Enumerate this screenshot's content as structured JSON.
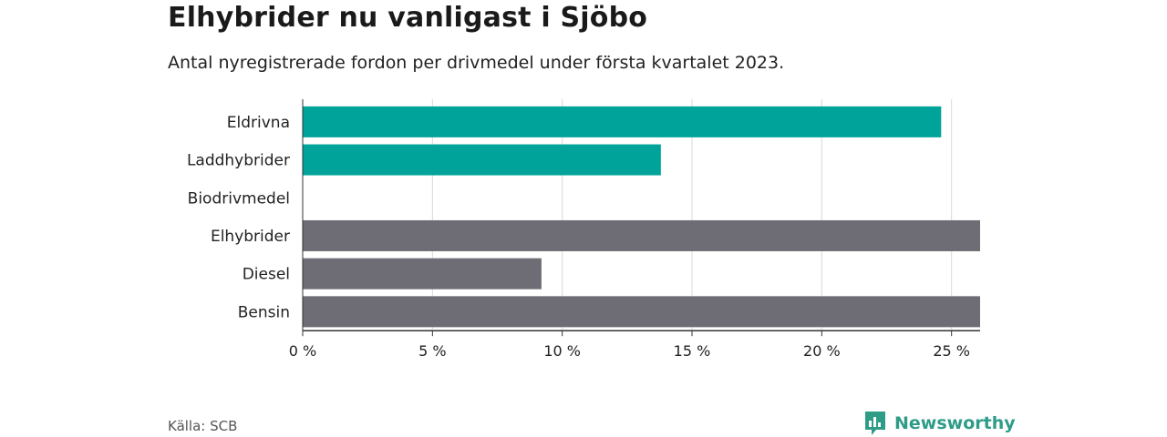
{
  "title": "Elhybrider nu vanligast i Sjöbo",
  "subtitle": "Antal nyregistrerade fordon per drivmedel under första kvartalet 2023.",
  "source": "Källa: SCB",
  "brand": {
    "name": "Newsworthy",
    "icon": "newsworthy-logo-icon"
  },
  "colors": {
    "highlight": "#00a39a",
    "default": "#6e6c74",
    "brand": "#2f9c88"
  },
  "chart_data": {
    "type": "bar",
    "orientation": "horizontal",
    "categories": [
      "Eldrivna",
      "Laddhybrider",
      "Biodrivmedel",
      "Elhybrider",
      "Diesel",
      "Bensin"
    ],
    "values": [
      24.6,
      13.8,
      0,
      26.1,
      9.2,
      26.1
    ],
    "highlighted": [
      true,
      true,
      false,
      false,
      false,
      false
    ],
    "xlim": [
      0,
      26.1
    ],
    "xticks": [
      0,
      5,
      10,
      15,
      20,
      25
    ],
    "xtick_labels": [
      "0 %",
      "5 %",
      "10 %",
      "15 %",
      "20 %",
      "25 %"
    ],
    "grid": true
  }
}
